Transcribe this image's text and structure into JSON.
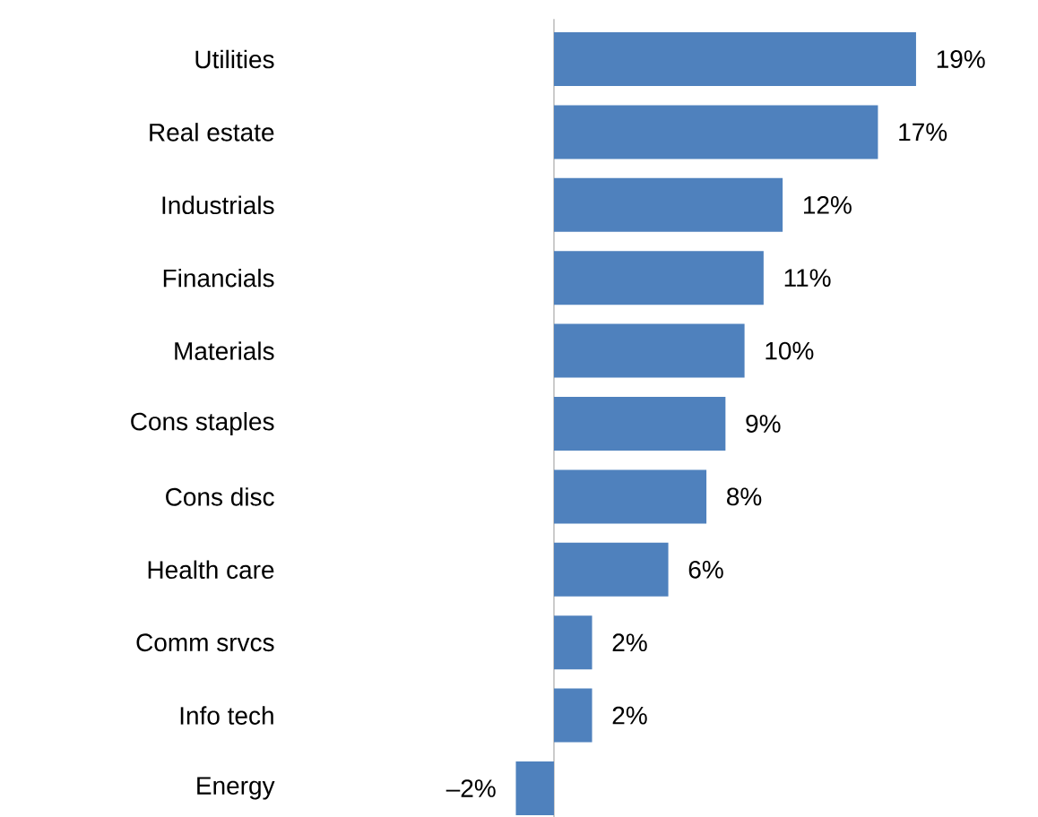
{
  "chart_data": {
    "type": "bar",
    "orientation": "horizontal",
    "categories": [
      "Utilities",
      "Real estate",
      "Industrials",
      "Financials",
      "Materials",
      "Cons staples",
      "Cons disc",
      "Health care",
      "Comm srvcs",
      "Info tech",
      "Energy"
    ],
    "values": [
      19,
      17,
      12,
      11,
      10,
      9,
      8,
      6,
      2,
      2,
      -2
    ],
    "value_labels": [
      "19%",
      "17%",
      "12%",
      "11%",
      "10%",
      "9%",
      "8%",
      "6%",
      "2%",
      "2%",
      "–2%"
    ],
    "color": "#4f81bd"
  }
}
